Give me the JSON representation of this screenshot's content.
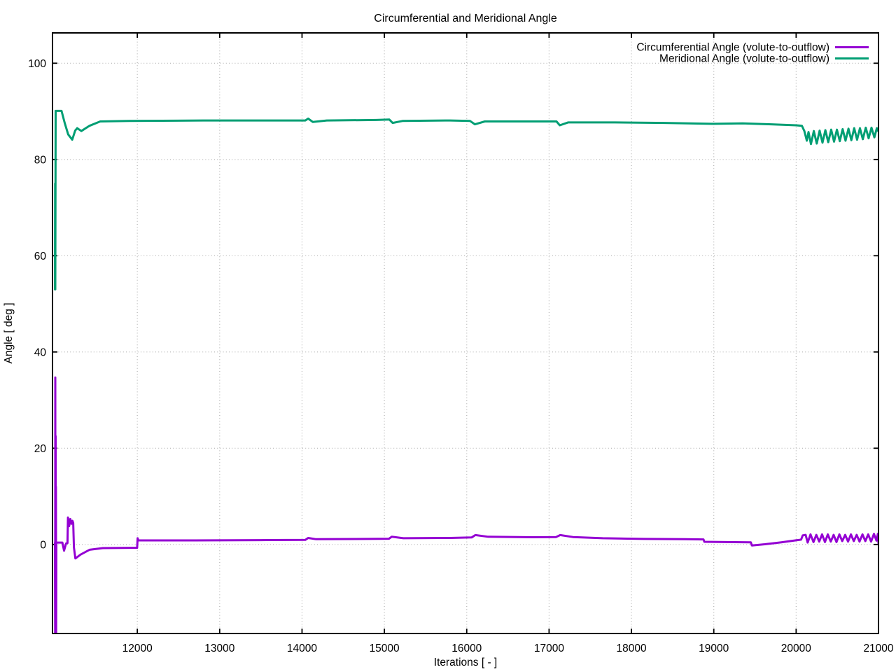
{
  "figure": {
    "background": "#ffffff"
  },
  "chart_data": {
    "type": "line",
    "title": "Circumferential and Meridional Angle",
    "xlabel": "Iterations [ - ]",
    "ylabel": "Angle [ deg ]",
    "xlim": [
      10970,
      21000
    ],
    "ylim": [
      -18.5,
      106.3
    ],
    "xticks": [
      12000,
      13000,
      14000,
      15000,
      16000,
      17000,
      18000,
      19000,
      20000,
      21000
    ],
    "yticks": [
      0,
      20,
      40,
      60,
      80,
      100
    ],
    "grid": true,
    "grid_color": "#b3b3b3",
    "border_color": "#000000",
    "legend_position": "top-right-inside",
    "series": [
      {
        "name": "Circumferential Angle (volute-to-outflow)",
        "color": "#9400d3",
        "points": [
          [
            11000,
            0.3
          ],
          [
            11002,
            -18.5
          ],
          [
            11004,
            34.7
          ],
          [
            11006,
            -18.5
          ],
          [
            11008,
            22.5
          ],
          [
            11010,
            -18.5
          ],
          [
            11012,
            12.0
          ],
          [
            11014,
            -18.5
          ],
          [
            11017,
            0.4
          ],
          [
            11090,
            0.4
          ],
          [
            11110,
            -1.3
          ],
          [
            11135,
            0.2
          ],
          [
            11152,
            0.3
          ],
          [
            11158,
            5.6
          ],
          [
            11172,
            3.8
          ],
          [
            11186,
            5.3
          ],
          [
            11200,
            4.3
          ],
          [
            11212,
            4.9
          ],
          [
            11222,
            4.5
          ],
          [
            11230,
            -0.6
          ],
          [
            11248,
            -2.9
          ],
          [
            11310,
            -2.1
          ],
          [
            11420,
            -1.1
          ],
          [
            11580,
            -0.75
          ],
          [
            11900,
            -0.7
          ],
          [
            11998,
            -0.7
          ],
          [
            12004,
            1.3
          ],
          [
            12012,
            0.85
          ],
          [
            12700,
            0.85
          ],
          [
            13500,
            0.9
          ],
          [
            14040,
            0.95
          ],
          [
            14075,
            1.35
          ],
          [
            14170,
            1.1
          ],
          [
            14800,
            1.15
          ],
          [
            15055,
            1.2
          ],
          [
            15090,
            1.6
          ],
          [
            15230,
            1.3
          ],
          [
            15800,
            1.35
          ],
          [
            16060,
            1.45
          ],
          [
            16105,
            1.95
          ],
          [
            16260,
            1.6
          ],
          [
            16800,
            1.5
          ],
          [
            17085,
            1.55
          ],
          [
            17135,
            1.95
          ],
          [
            17290,
            1.55
          ],
          [
            17650,
            1.3
          ],
          [
            18150,
            1.15
          ],
          [
            18650,
            1.1
          ],
          [
            18875,
            1.05
          ],
          [
            18885,
            0.55
          ],
          [
            19150,
            0.5
          ],
          [
            19450,
            0.45
          ],
          [
            19462,
            -0.2
          ],
          [
            19620,
            0.05
          ],
          [
            19820,
            0.45
          ],
          [
            19990,
            0.85
          ],
          [
            20060,
            1.0
          ],
          [
            20080,
            1.9
          ],
          [
            20115,
            2.0
          ],
          [
            20140,
            0.4
          ],
          [
            20175,
            2.1
          ],
          [
            20210,
            0.5
          ],
          [
            20245,
            2.0
          ],
          [
            20280,
            0.6
          ],
          [
            20315,
            2.1
          ],
          [
            20350,
            0.5
          ],
          [
            20385,
            2.1
          ],
          [
            20420,
            0.6
          ],
          [
            20455,
            2.0
          ],
          [
            20490,
            0.5
          ],
          [
            20525,
            2.1
          ],
          [
            20560,
            0.7
          ],
          [
            20595,
            2.0
          ],
          [
            20630,
            0.6
          ],
          [
            20665,
            2.1
          ],
          [
            20700,
            0.7
          ],
          [
            20735,
            2.0
          ],
          [
            20770,
            0.6
          ],
          [
            20805,
            2.1
          ],
          [
            20840,
            0.7
          ],
          [
            20875,
            2.1
          ],
          [
            20910,
            0.6
          ],
          [
            20945,
            2.2
          ],
          [
            20975,
            0.8
          ],
          [
            20992,
            2.2
          ],
          [
            21000,
            0.2
          ]
        ]
      },
      {
        "name": "Meridional Angle (volute-to-outflow)",
        "color": "#009e73",
        "points": [
          [
            11000,
            53
          ],
          [
            11002,
            75
          ],
          [
            11004,
            53
          ],
          [
            11008,
            90.1
          ],
          [
            11080,
            90.1
          ],
          [
            11120,
            87.5
          ],
          [
            11160,
            85.2
          ],
          [
            11210,
            84.1
          ],
          [
            11245,
            86.0
          ],
          [
            11270,
            86.5
          ],
          [
            11320,
            85.9
          ],
          [
            11420,
            87.0
          ],
          [
            11550,
            87.9
          ],
          [
            11900,
            88.0
          ],
          [
            12800,
            88.1
          ],
          [
            13800,
            88.1
          ],
          [
            14040,
            88.1
          ],
          [
            14075,
            88.5
          ],
          [
            14130,
            87.8
          ],
          [
            14300,
            88.1
          ],
          [
            14900,
            88.2
          ],
          [
            15060,
            88.3
          ],
          [
            15100,
            87.6
          ],
          [
            15220,
            88.0
          ],
          [
            15800,
            88.1
          ],
          [
            16040,
            88.0
          ],
          [
            16100,
            87.3
          ],
          [
            16220,
            87.9
          ],
          [
            16900,
            87.9
          ],
          [
            17090,
            87.9
          ],
          [
            17130,
            87.1
          ],
          [
            17230,
            87.7
          ],
          [
            17800,
            87.7
          ],
          [
            18400,
            87.6
          ],
          [
            19000,
            87.4
          ],
          [
            19350,
            87.5
          ],
          [
            19700,
            87.3
          ],
          [
            20000,
            87.1
          ],
          [
            20070,
            87.0
          ],
          [
            20100,
            85.9
          ],
          [
            20130,
            83.9
          ],
          [
            20150,
            85.7
          ],
          [
            20180,
            83.2
          ],
          [
            20215,
            85.9
          ],
          [
            20250,
            83.3
          ],
          [
            20285,
            86.0
          ],
          [
            20320,
            83.5
          ],
          [
            20355,
            86.1
          ],
          [
            20390,
            83.6
          ],
          [
            20425,
            86.2
          ],
          [
            20460,
            83.7
          ],
          [
            20495,
            86.2
          ],
          [
            20530,
            83.8
          ],
          [
            20565,
            86.3
          ],
          [
            20600,
            83.9
          ],
          [
            20635,
            86.4
          ],
          [
            20670,
            84.0
          ],
          [
            20705,
            86.5
          ],
          [
            20740,
            84.1
          ],
          [
            20775,
            86.5
          ],
          [
            20810,
            84.2
          ],
          [
            20845,
            86.6
          ],
          [
            20880,
            84.4
          ],
          [
            20915,
            86.6
          ],
          [
            20950,
            84.6
          ],
          [
            20980,
            86.5
          ],
          [
            21000,
            85.8
          ]
        ]
      }
    ]
  }
}
